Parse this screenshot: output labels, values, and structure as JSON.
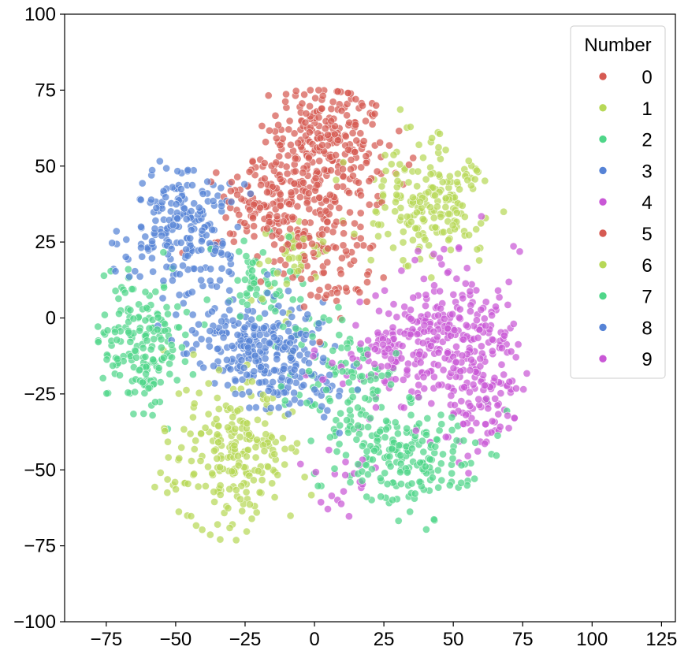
{
  "chart_data": {
    "type": "scatter",
    "title": "",
    "xlabel": "",
    "ylabel": "",
    "xlim": [
      -90,
      130
    ],
    "ylim": [
      -100,
      100
    ],
    "xticks": [
      -75,
      -50,
      -25,
      0,
      25,
      50,
      75,
      100,
      125
    ],
    "yticks": [
      -100,
      -75,
      -50,
      -25,
      0,
      25,
      50,
      75,
      100
    ],
    "xtick_labels": [
      "−75",
      "−50",
      "−25",
      "0",
      "25",
      "50",
      "75",
      "100",
      "125"
    ],
    "ytick_labels": [
      "−100",
      "−75",
      "−50",
      "−25",
      "0",
      "25",
      "50",
      "75",
      "100"
    ],
    "grid": false,
    "legend": {
      "title": "Number",
      "placement": "top-right",
      "entries": [
        "0",
        "1",
        "2",
        "3",
        "4",
        "5",
        "6",
        "7",
        "8",
        "9"
      ]
    },
    "series": [
      {
        "name": "0",
        "color": "#d65a52",
        "clusters": [
          {
            "cx": 5,
            "cy": 60,
            "sx": 11,
            "sy": 10,
            "n": 220
          }
        ]
      },
      {
        "name": "1",
        "color": "#b7d857",
        "clusters": [
          {
            "cx": 42,
            "cy": 38,
            "sx": 11,
            "sy": 9,
            "n": 200
          }
        ]
      },
      {
        "name": "2",
        "color": "#4fd689",
        "clusters": [
          {
            "cx": 32,
            "cy": -45,
            "sx": 12,
            "sy": 9,
            "n": 200
          },
          {
            "cx": 10,
            "cy": -20,
            "sx": 10,
            "sy": 12,
            "n": 100
          }
        ]
      },
      {
        "name": "3",
        "color": "#5683d6",
        "clusters": [
          {
            "cx": -48,
            "cy": 30,
            "sx": 11,
            "sy": 11,
            "n": 220
          }
        ]
      },
      {
        "name": "4",
        "color": "#c957d6",
        "clusters": [
          {
            "cx": 50,
            "cy": -5,
            "sx": 12,
            "sy": 12,
            "n": 200
          }
        ]
      },
      {
        "name": "5",
        "color": "#d65a52",
        "clusters": [
          {
            "cx": -12,
            "cy": 38,
            "sx": 12,
            "sy": 9,
            "n": 200
          },
          {
            "cx": 5,
            "cy": 20,
            "sx": 8,
            "sy": 10,
            "n": 90
          }
        ]
      },
      {
        "name": "6",
        "color": "#b7d857",
        "clusters": [
          {
            "cx": -30,
            "cy": -45,
            "sx": 12,
            "sy": 12,
            "n": 230
          },
          {
            "cx": -5,
            "cy": 20,
            "sx": 8,
            "sy": 8,
            "n": 40
          }
        ]
      },
      {
        "name": "7",
        "color": "#4fd689",
        "clusters": [
          {
            "cx": -62,
            "cy": -8,
            "sx": 8,
            "sy": 11,
            "n": 180
          },
          {
            "cx": -20,
            "cy": 10,
            "sx": 8,
            "sy": 8,
            "n": 60
          }
        ]
      },
      {
        "name": "8",
        "color": "#5683d6",
        "clusters": [
          {
            "cx": -22,
            "cy": -10,
            "sx": 12,
            "sy": 8,
            "n": 220
          },
          {
            "cx": -5,
            "cy": -20,
            "sx": 8,
            "sy": 8,
            "n": 70
          }
        ]
      },
      {
        "name": "9",
        "color": "#c957d6",
        "clusters": [
          {
            "cx": 28,
            "cy": -12,
            "sx": 10,
            "sy": 8,
            "n": 110
          },
          {
            "cx": 60,
            "cy": -25,
            "sx": 7,
            "sy": 10,
            "n": 110
          },
          {
            "cx": 10,
            "cy": -55,
            "sx": 6,
            "sy": 6,
            "n": 20
          }
        ]
      }
    ]
  }
}
